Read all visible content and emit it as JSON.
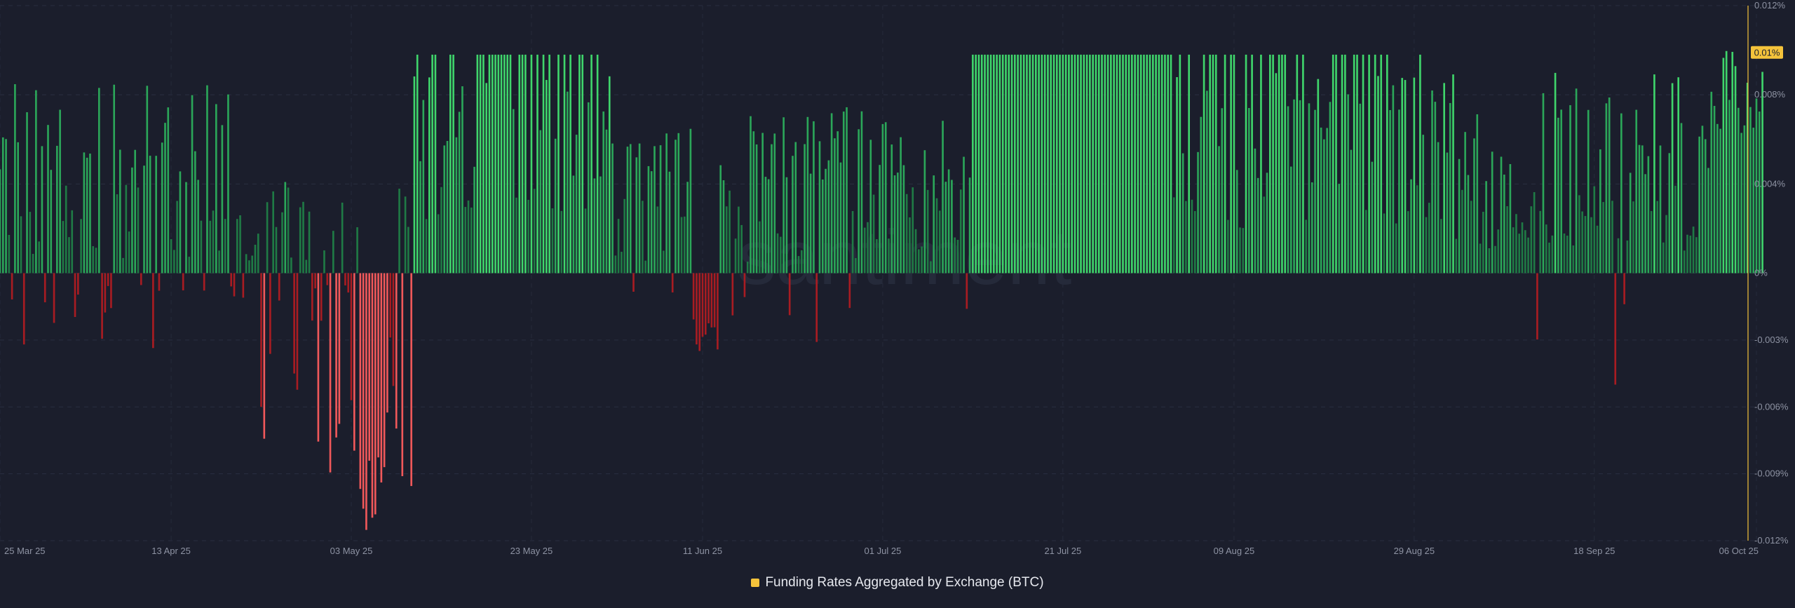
{
  "chart_data": {
    "type": "bar",
    "title": "",
    "legend": {
      "label": "Funding Rates Aggregated by Exchange (BTC)",
      "color": "#f5c33b",
      "placement": "bottom-center"
    },
    "watermark": "santiment",
    "y_axis": {
      "position": "right",
      "unit": "%",
      "ylim": [
        -0.012,
        0.012
      ],
      "ticks": [
        "0.012%",
        "0.008%",
        "0.004%",
        "0%",
        "-0.003%",
        "-0.006%",
        "-0.009%",
        "-0.012%"
      ],
      "tick_values": [
        0.012,
        0.008,
        0.004,
        0,
        -0.003,
        -0.006,
        -0.009,
        -0.012
      ],
      "current_value_label": "0.01%",
      "current_value": 0.0099
    },
    "x_axis": {
      "start": "2025-03-25",
      "end": "2025-10-06",
      "tick_labels": [
        "25 Mar 25",
        "13 Apr 25",
        "03 May 25",
        "23 May 25",
        "11 Jun 25",
        "01 Jul 25",
        "21 Jul 25",
        "09 Aug 25",
        "29 Aug 25",
        "18 Sep 25",
        "06 Oct 25"
      ],
      "tick_dates": [
        "2025-03-25",
        "2025-04-13",
        "2025-05-03",
        "2025-05-23",
        "2025-06-11",
        "2025-07-01",
        "2025-07-21",
        "2025-08-09",
        "2025-08-29",
        "2025-09-18",
        "2025-10-06"
      ]
    },
    "grid": true,
    "colors": {
      "positive_high": "#3fd56b",
      "positive_mid": "#2ba659",
      "positive_low": "#1f7a45",
      "negative_high": "#f0585a",
      "negative_low": "#a81c22"
    },
    "bars_per_day": 3,
    "daily_pattern_note": "three readings per day",
    "values": []
  }
}
